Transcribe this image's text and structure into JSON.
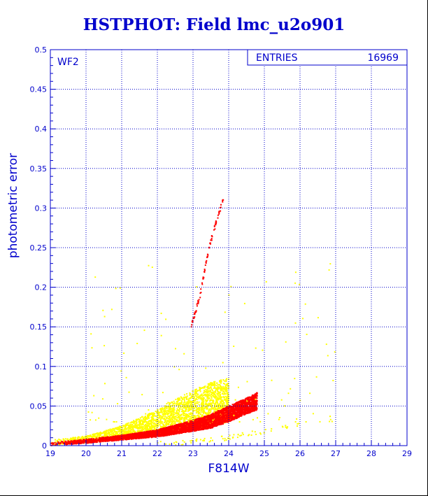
{
  "title": "HSTPHOT: Field lmc_u2o901",
  "chart_data": {
    "type": "scatter",
    "xlabel": "F814W",
    "ylabel": "photometric error",
    "xlim": [
      19,
      29
    ],
    "ylim": [
      0,
      0.5
    ],
    "x_ticks": [
      "19",
      "20",
      "21",
      "22",
      "23",
      "24",
      "25",
      "26",
      "27",
      "28",
      "29"
    ],
    "y_ticks": [
      "0",
      "0.05",
      "0.1",
      "0.15",
      "0.2",
      "0.25",
      "0.3",
      "0.35",
      "0.4",
      "0.45",
      "0.5"
    ],
    "grid": true,
    "panel_label": "WF2",
    "stats_box": {
      "label": "ENTRIES",
      "value": "16969"
    },
    "series": [
      {
        "color": "#ffff00",
        "envelope": {
          "x": [
            19.0,
            20.0,
            21.0,
            22.0,
            22.5,
            23.0,
            23.5,
            24.0
          ],
          "y_lo": [
            0.0,
            0.004,
            0.008,
            0.012,
            0.016,
            0.02,
            0.025,
            0.03
          ],
          "y_hi": [
            0.007,
            0.012,
            0.025,
            0.045,
            0.058,
            0.07,
            0.08,
            0.085
          ]
        }
      },
      {
        "color": "#ff0000",
        "envelope": {
          "x": [
            19.0,
            20.0,
            21.0,
            22.0,
            23.0,
            23.5,
            24.0,
            24.5,
            24.8
          ],
          "y_lo": [
            0.0,
            0.003,
            0.007,
            0.011,
            0.018,
            0.022,
            0.03,
            0.04,
            0.045
          ],
          "y_hi": [
            0.004,
            0.008,
            0.013,
            0.02,
            0.032,
            0.04,
            0.05,
            0.06,
            0.067
          ]
        }
      }
    ],
    "features": [
      {
        "name": "bright-branch",
        "color": "#ff0000",
        "x": [
          22.95,
          23.2,
          23.45,
          23.7,
          23.85
        ],
        "y": [
          0.15,
          0.19,
          0.25,
          0.29,
          0.31
        ]
      },
      {
        "name": "faint-sequence",
        "color": "#ffff00",
        "x": [
          22.0,
          22.5,
          23.0,
          23.5,
          24.0,
          24.5,
          25.0,
          25.5,
          26.0
        ],
        "y": [
          0.002,
          0.003,
          0.005,
          0.007,
          0.01,
          0.014,
          0.018,
          0.022,
          0.028
        ]
      }
    ]
  }
}
